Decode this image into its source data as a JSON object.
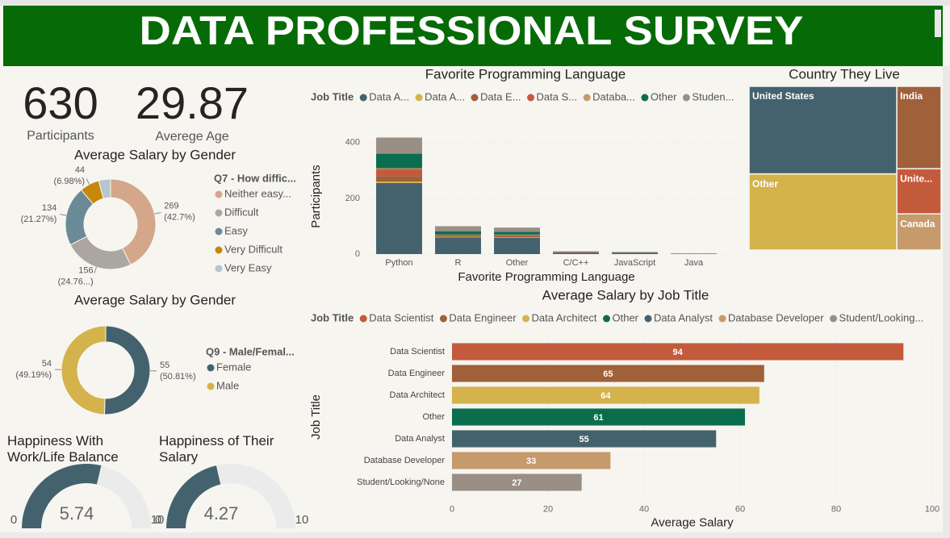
{
  "header": {
    "title": "DATA PROFESSIONAL SURVEY"
  },
  "chart_data": [
    {
      "type": "card",
      "value": 630,
      "label": "Participants"
    },
    {
      "type": "card",
      "value": 29.87,
      "label": "Averege Age"
    },
    {
      "type": "donut",
      "title": "Average Salary by Gender",
      "legend_title": "Q7 - How diffic...",
      "labels": [
        "Neither easy...",
        "Difficult",
        "Easy",
        "Very Difficult",
        "Very Easy"
      ],
      "values": [
        269,
        156,
        134,
        44,
        27
      ],
      "percent_labels": [
        "(42.7%)",
        "(24.76...)",
        "(21.27%)",
        "(6.98%)",
        null
      ],
      "colors": [
        "#d4a68a",
        "#aba6a1",
        "#6b8a97",
        "#c7870a",
        "#b6c6cc"
      ]
    },
    {
      "type": "donut",
      "title": "Average Salary by Gender",
      "legend_title": "Q9 - Male/Femal...",
      "labels": [
        "Female",
        "Male"
      ],
      "values": [
        55,
        54
      ],
      "percent_labels": [
        "(50.81%)",
        "(49.19%)"
      ],
      "colors": [
        "#44626e",
        "#d4b24c"
      ]
    },
    {
      "type": "bar",
      "stacked": true,
      "title": "Favorite Programming Language",
      "legend_title": "Job Title",
      "x_label": "Favorite Programming Language",
      "y_label": "Participants",
      "categories": [
        "Python",
        "R",
        "Other",
        "C/C++",
        "JavaScript",
        "Java"
      ],
      "series": [
        {
          "name": "Data A...",
          "color": "#44626e",
          "values": [
            255,
            60,
            58,
            5,
            4,
            1
          ]
        },
        {
          "name": "Data A...",
          "color": "#d4b24c",
          "values": [
            5,
            2,
            2,
            0,
            0,
            0
          ]
        },
        {
          "name": "Data E...",
          "color": "#a0603a",
          "values": [
            20,
            5,
            5,
            1,
            1,
            0
          ]
        },
        {
          "name": "Data S...",
          "color": "#c45a3c",
          "values": [
            25,
            3,
            3,
            2,
            0,
            1
          ]
        },
        {
          "name": "Databa...",
          "color": "#c69a6b",
          "values": [
            3,
            0,
            2,
            0,
            0,
            0
          ]
        },
        {
          "name": "Other",
          "color": "#0a6e4e",
          "values": [
            52,
            12,
            10,
            1,
            1,
            0
          ]
        },
        {
          "name": "Studen...",
          "color": "#9a8f85",
          "values": [
            58,
            18,
            15,
            1,
            2,
            1
          ]
        }
      ],
      "ylim": [
        0,
        460
      ],
      "yticks": [
        0,
        200,
        400
      ],
      "grid": true
    },
    {
      "type": "treemap",
      "title": "Country They Live",
      "labels": [
        "United States",
        "Other",
        "India",
        "Unite...",
        "Canada"
      ],
      "values": [
        259,
        225,
        73,
        40,
        32
      ],
      "colors": [
        "#44626e",
        "#d4b24c",
        "#a0603a",
        "#c45a3c",
        "#c69a6b"
      ]
    },
    {
      "type": "barh",
      "title": "Average Salary by Job Title",
      "legend_title": "Job Title",
      "legend_labels": [
        "Data Scientist",
        "Data Engineer",
        "Data Architect",
        "Other",
        "Data Analyst",
        "Database Developer",
        "Student/Looking..."
      ],
      "categories": [
        "Data Scientist",
        "Data Engineer",
        "Data Architect",
        "Other",
        "Data Analyst",
        "Database Developer",
        "Student/Looking/None"
      ],
      "values": [
        94,
        65,
        64,
        61,
        55,
        33,
        27
      ],
      "colors": [
        "#c45a3c",
        "#a0603a",
        "#d4b24c",
        "#0a6e4e",
        "#44626e",
        "#c69a6b",
        "#9a8f85"
      ],
      "xlim": [
        0,
        100
      ],
      "xticks": [
        0,
        20,
        40,
        60,
        80,
        100
      ],
      "grid": true,
      "x_label": "Average Salary",
      "y_label": "Job Title"
    },
    {
      "type": "gauge",
      "title": "Happiness With Work/Life Balance",
      "value": 5.74,
      "min": 0,
      "max": 10,
      "color": "#44626e"
    },
    {
      "type": "gauge",
      "title": "Happiness of Their Salary",
      "value": 4.27,
      "min": 0,
      "max": 10,
      "color": "#44626e"
    }
  ]
}
